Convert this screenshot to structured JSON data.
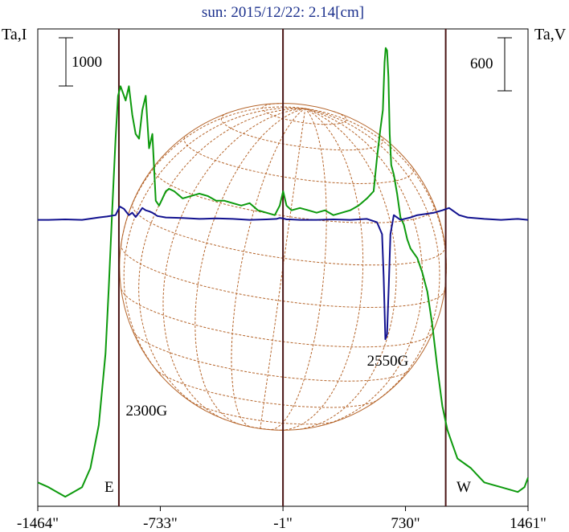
{
  "chart_data": {
    "type": "line",
    "title": "sun: 2015/12/22: 2.14[cm]",
    "left_axis_label": "Ta,I",
    "right_axis_label": "Ta,V",
    "x_ticks": [
      {
        "value": -1464,
        "label": "-1464\""
      },
      {
        "value": -733,
        "label": "-733\""
      },
      {
        "value": -1,
        "label": "-1\""
      },
      {
        "value": 730,
        "label": "730\""
      },
      {
        "value": 1461,
        "label": "1461\""
      }
    ],
    "xlim": [
      -1464,
      1461
    ],
    "vertical_lines_x": [
      -980,
      -1,
      970
    ],
    "scale_bar_left": {
      "label": "1000"
    },
    "scale_bar_right": {
      "label": "600"
    },
    "limb_labels": {
      "east": "E",
      "west": "W"
    },
    "annotations": [
      {
        "text": "2300G",
        "x": -939,
        "y": 1900
      },
      {
        "text": "2550G",
        "x": 500,
        "y": 2950
      }
    ],
    "ylim": [
      0,
      10000
    ],
    "solar_disk": {
      "radius_arcsec": 975
    },
    "series": [
      {
        "color": "#0d9a0d",
        "x": [
          -1464,
          -1400,
          -1350,
          -1300,
          -1250,
          -1200,
          -1150,
          -1100,
          -1060,
          -1040,
          -1020,
          -1000,
          -985,
          -970,
          -955,
          -940,
          -920,
          -900,
          -880,
          -860,
          -840,
          -820,
          -800,
          -780,
          -760,
          -740,
          -720,
          -700,
          -680,
          -650,
          -600,
          -550,
          -500,
          -450,
          -400,
          -350,
          -300,
          -250,
          -200,
          -150,
          -100,
          -50,
          -20,
          0,
          20,
          50,
          100,
          150,
          200,
          250,
          300,
          350,
          400,
          450,
          500,
          540,
          560,
          580,
          595,
          605,
          612,
          620,
          628,
          636,
          645,
          660,
          680,
          700,
          720,
          740,
          760,
          780,
          800,
          830,
          860,
          890,
          920,
          950,
          980,
          1010,
          1040,
          1080,
          1120,
          1160,
          1200,
          1250,
          1300,
          1350,
          1400,
          1440,
          1461
        ],
        "y": [
          500,
          400,
          300,
          200,
          300,
          400,
          800,
          1700,
          3200,
          4600,
          6200,
          7700,
          8600,
          8800,
          8650,
          8500,
          8800,
          8200,
          7800,
          7700,
          8300,
          8600,
          7500,
          7800,
          6400,
          6300,
          6450,
          6600,
          6650,
          6600,
          6450,
          6500,
          6550,
          6500,
          6400,
          6400,
          6350,
          6300,
          6350,
          6200,
          6150,
          6100,
          6300,
          6600,
          6300,
          6200,
          6250,
          6200,
          6150,
          6200,
          6100,
          6150,
          6200,
          6300,
          6450,
          6600,
          7300,
          7900,
          8300,
          9300,
          9600,
          9550,
          9000,
          7800,
          7150,
          6950,
          6550,
          6050,
          5900,
          5600,
          5400,
          5300,
          5200,
          4900,
          4500,
          3800,
          2900,
          2100,
          1600,
          1300,
          1000,
          900,
          800,
          650,
          500,
          450,
          400,
          350,
          300,
          400,
          600
        ]
      },
      {
        "color": "#11118f",
        "x": [
          -1464,
          -1400,
          -1300,
          -1200,
          -1100,
          -1050,
          -1000,
          -975,
          -950,
          -920,
          -900,
          -880,
          -860,
          -840,
          -820,
          -800,
          -780,
          -750,
          -700,
          -600,
          -500,
          -400,
          -300,
          -200,
          -100,
          -40,
          -20,
          0,
          20,
          40,
          100,
          200,
          300,
          400,
          500,
          560,
          590,
          600,
          610,
          620,
          630,
          640,
          660,
          700,
          760,
          800,
          900,
          950,
          990,
          1050,
          1100,
          1200,
          1300,
          1400,
          1461
        ],
        "y": [
          6000,
          6000,
          6010,
          6000,
          6050,
          6070,
          6100,
          6280,
          6230,
          6100,
          6150,
          6060,
          6150,
          6250,
          6200,
          6180,
          6150,
          6080,
          6050,
          6040,
          6020,
          6030,
          6020,
          6000,
          6010,
          6020,
          6040,
          6030,
          6010,
          6010,
          6000,
          6000,
          6010,
          6000,
          6020,
          5950,
          5700,
          4800,
          3500,
          3600,
          4600,
          5700,
          6100,
          6000,
          6050,
          6100,
          6150,
          6200,
          6250,
          6100,
          6050,
          6020,
          6000,
          6020,
          6000
        ]
      }
    ]
  }
}
